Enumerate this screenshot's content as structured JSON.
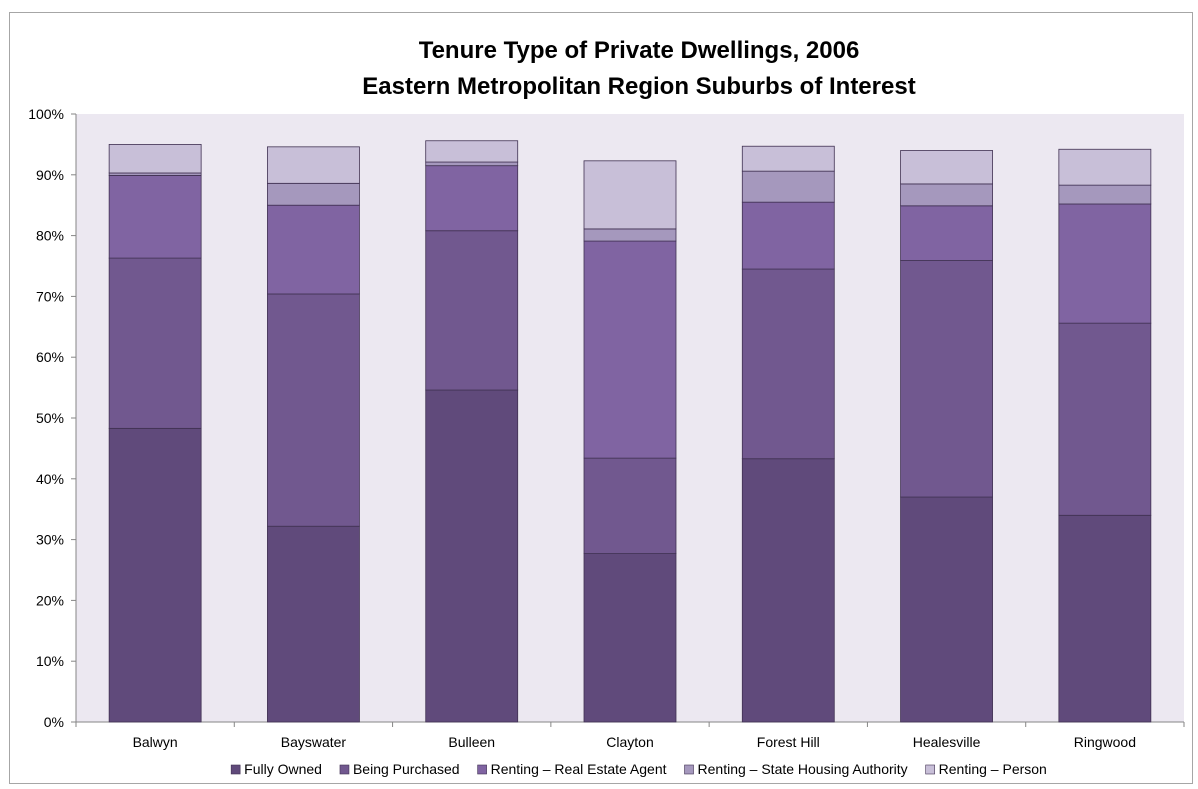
{
  "chart_data": {
    "type": "bar",
    "stacked": true,
    "title": "Tenure Type of Private Dwellings, 2006",
    "subtitle": "Eastern Metropolitan Region Suburbs of Interest",
    "xlabel": "",
    "ylabel": "",
    "ylim": [
      0,
      100
    ],
    "yticks": [
      "0%",
      "10%",
      "20%",
      "30%",
      "40%",
      "50%",
      "60%",
      "70%",
      "80%",
      "90%",
      "100%"
    ],
    "grid": false,
    "legend_position": "bottom",
    "plot_background": "#ece8f1",
    "categories": [
      "Balwyn",
      "Bayswater",
      "Bulleen",
      "Clayton",
      "Forest Hill",
      "Healesville",
      "Ringwood"
    ],
    "series": [
      {
        "name": "Fully Owned",
        "color": "#604a7b",
        "values": [
          48.3,
          32.2,
          54.6,
          27.7,
          43.3,
          37.0,
          34.0
        ]
      },
      {
        "name": "Being Purchased",
        "color": "#71588f",
        "values": [
          28.0,
          38.2,
          26.2,
          15.7,
          31.2,
          38.9,
          31.6
        ]
      },
      {
        "name": "Renting – Real Estate Agent",
        "color": "#8064a2",
        "values": [
          13.6,
          14.6,
          10.7,
          35.7,
          11.0,
          9.0,
          19.6
        ]
      },
      {
        "name": "Renting – State Housing Authority",
        "color": "#a598bd",
        "values": [
          0.4,
          3.6,
          0.6,
          2.0,
          5.1,
          3.6,
          3.1
        ]
      },
      {
        "name": "Renting – Person",
        "color": "#c8bfd8",
        "values": [
          4.7,
          6.0,
          3.5,
          11.2,
          4.1,
          5.5,
          5.9
        ]
      }
    ]
  }
}
